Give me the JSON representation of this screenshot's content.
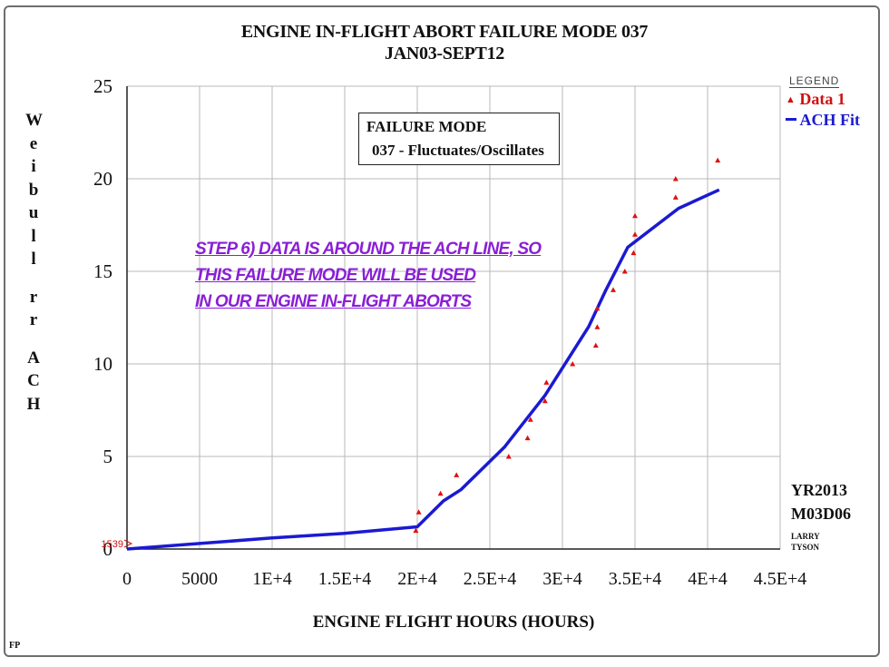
{
  "chart_data": {
    "type": "scatter",
    "title": "ENGINE IN-FLIGHT ABORT FAILURE MODE 037",
    "subtitle": "JAN03-SEPT12",
    "xlabel": "ENGINE FLIGHT HOURS (HOURS)",
    "ylabel": "Weibull rr ACH",
    "xlim": [
      0,
      45000
    ],
    "ylim": [
      0,
      25
    ],
    "x_tick_labels": [
      "0",
      "5000",
      "1E+4",
      "1.5E+4",
      "2E+4",
      "2.5E+4",
      "3E+4",
      "3.5E+4",
      "4E+4",
      "4.5E+4"
    ],
    "y_tick_labels": [
      "0",
      "5",
      "10",
      "15",
      "20",
      "25"
    ],
    "grid": true,
    "legend_title": "LEGEND",
    "legend_position": "top-right",
    "series": [
      {
        "name": "Data 1",
        "color": "#e01010",
        "marker": "triangle",
        "points": [
          [
            19900,
            1
          ],
          [
            20100,
            2
          ],
          [
            21600,
            3
          ],
          [
            22700,
            4
          ],
          [
            26300,
            5
          ],
          [
            27600,
            6
          ],
          [
            27800,
            7
          ],
          [
            28800,
            8
          ],
          [
            28900,
            9
          ],
          [
            30700,
            10
          ],
          [
            32300,
            11
          ],
          [
            32400,
            12
          ],
          [
            32400,
            13
          ],
          [
            33500,
            14
          ],
          [
            34300,
            15
          ],
          [
            34900,
            16
          ],
          [
            35000,
            17
          ],
          [
            35000,
            18
          ],
          [
            37800,
            19
          ],
          [
            37800,
            20
          ],
          [
            40700,
            21
          ]
        ]
      },
      {
        "name": "ACH Fit",
        "color": "#1a1ad2",
        "line": [
          [
            0,
            0
          ],
          [
            5000,
            0.3
          ],
          [
            10000,
            0.6
          ],
          [
            15000,
            0.85
          ],
          [
            20000,
            1.2
          ],
          [
            21800,
            2.6
          ],
          [
            23000,
            3.2
          ],
          [
            26000,
            5.5
          ],
          [
            28800,
            8.3
          ],
          [
            31800,
            12
          ],
          [
            33000,
            14
          ],
          [
            34500,
            16.3
          ],
          [
            38000,
            18.4
          ],
          [
            40800,
            19.4
          ]
        ]
      }
    ]
  },
  "annotations": {
    "failure_mode_line1": "FAILURE MODE",
    "failure_mode_line2": "037 - Fluctuates/Oscillates",
    "step_line1": "STEP 6) DATA IS AROUND THE ACH LINE, SO",
    "step_line2": "THIS FAILURE MODE WILL BE USED",
    "step_line3": "IN OUR ENGINE IN-FLIGHT ABORTS",
    "origin_marker": "1539",
    "date_year": "YR2013",
    "date_day": "M03D06",
    "author_first": "LARRY",
    "author_last": "TYSON",
    "corner_mark": "FP"
  },
  "legend": {
    "title": "LEGEND",
    "data_label": "Data  1",
    "fit_label": "ACH Fit"
  },
  "ylabel_chars": [
    "W",
    "e",
    "i",
    "b",
    "u",
    "l",
    "l",
    "",
    "r",
    "r",
    "",
    "A",
    "C",
    "H"
  ]
}
